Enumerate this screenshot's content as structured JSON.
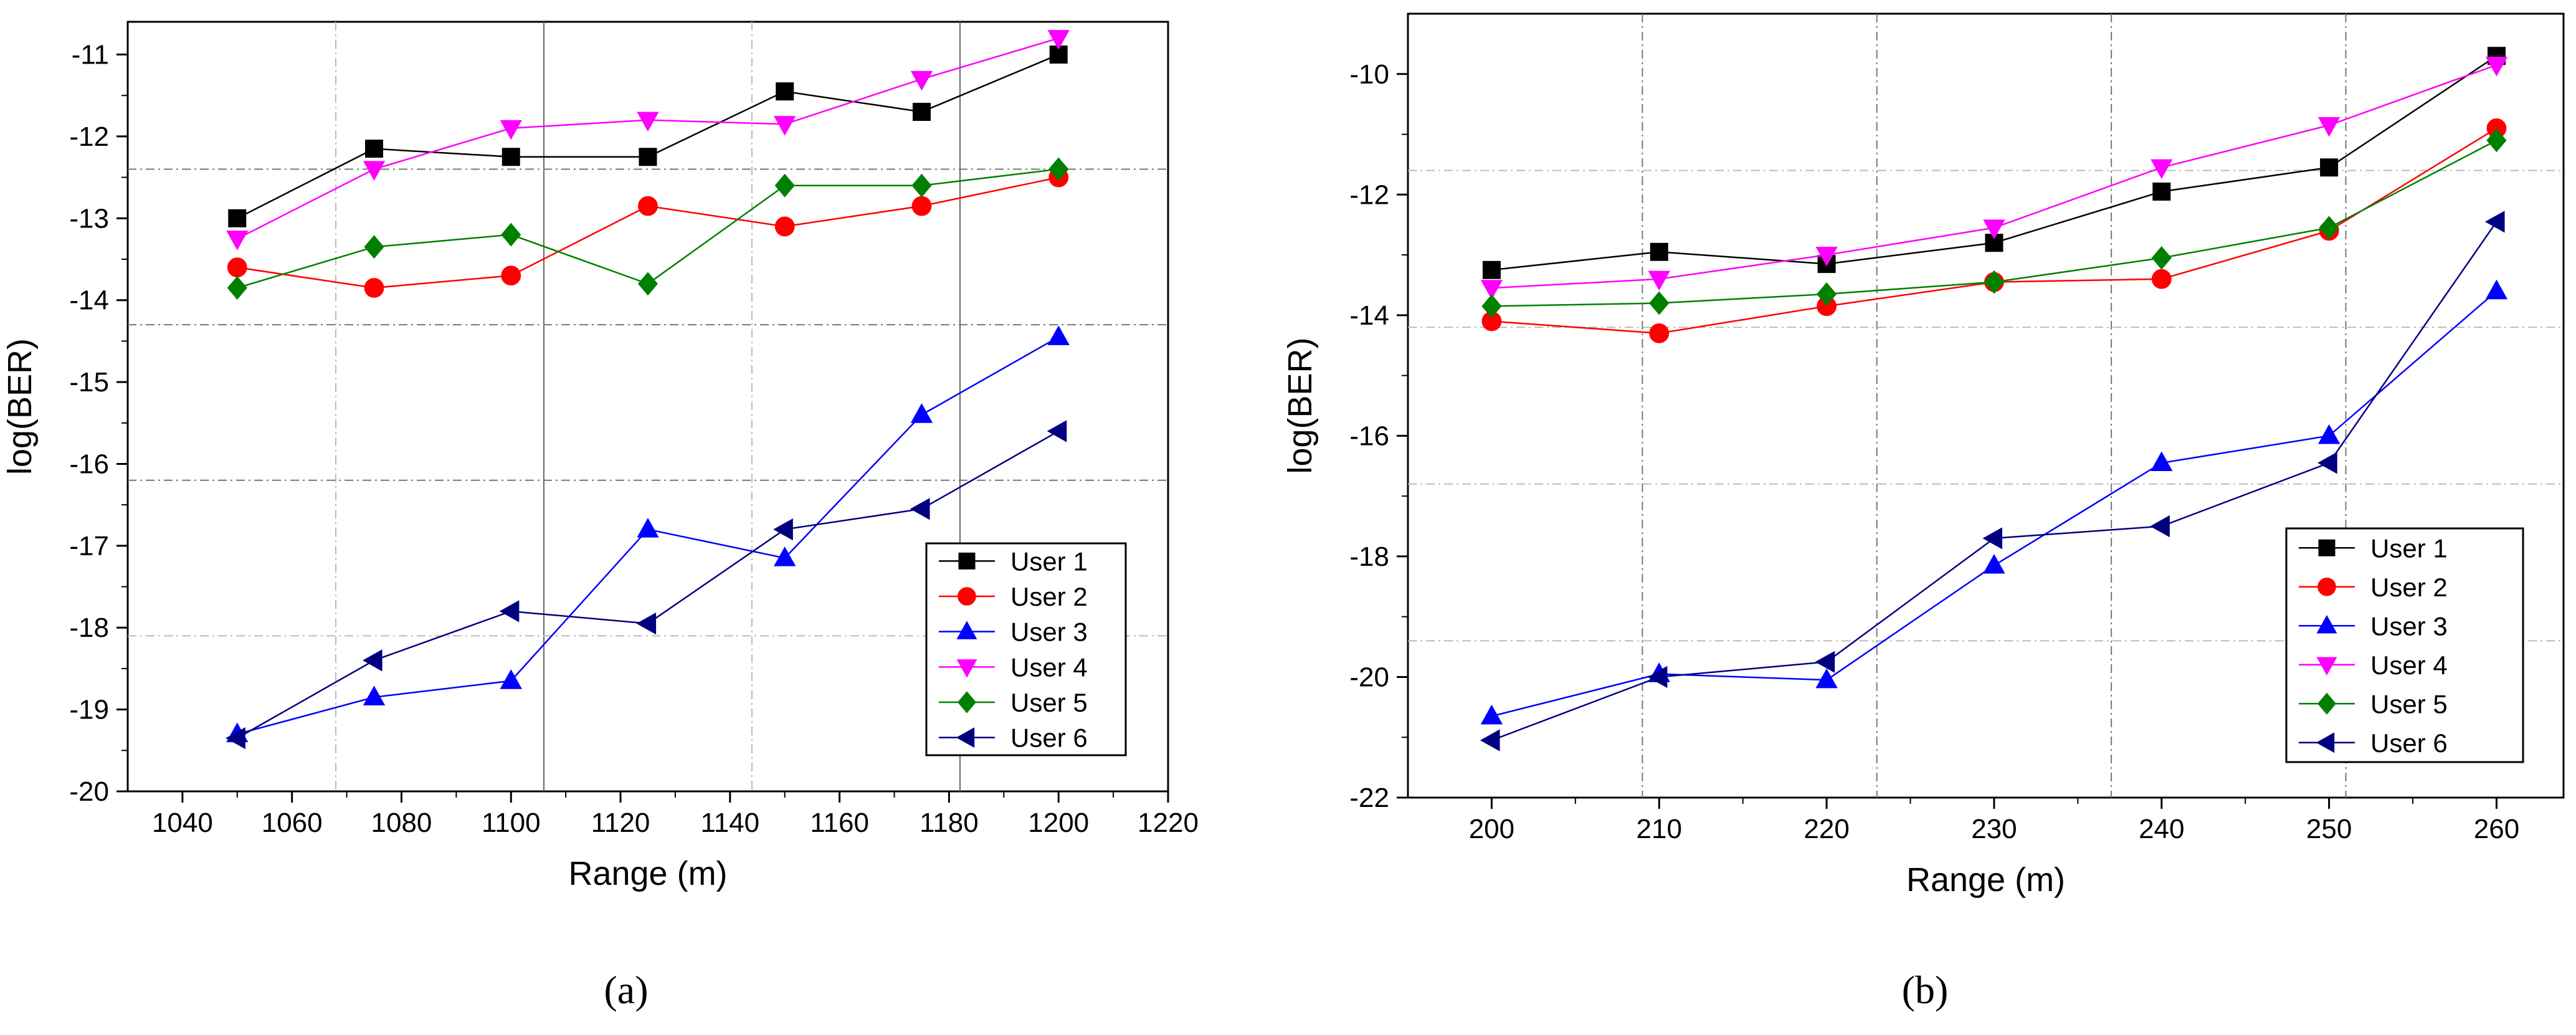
{
  "figure": {
    "captions": {
      "a": "(a)",
      "b": "(b)"
    }
  },
  "chart_data": [
    {
      "id": "a",
      "type": "line",
      "title": "",
      "xlabel": "Range (m)",
      "ylabel": "log(BER)",
      "xlim": [
        1030,
        1220
      ],
      "ylim": [
        -20,
        -10.6
      ],
      "xticks": [
        1040,
        1060,
        1080,
        1100,
        1120,
        1140,
        1160,
        1180,
        1200,
        1220
      ],
      "yticks": [
        -20,
        -19,
        -18,
        -17,
        -16,
        -15,
        -14,
        -13,
        -12,
        -11
      ],
      "legend_position": "bottom-right",
      "x": [
        1050,
        1075,
        1100,
        1125,
        1150,
        1175,
        1200
      ],
      "series": [
        {
          "name": "User 1",
          "color": "#000000",
          "marker": "square",
          "values": [
            -13.0,
            -12.15,
            -12.25,
            -12.25,
            -11.45,
            -11.7,
            -11.0
          ]
        },
        {
          "name": "User 2",
          "color": "#ff0000",
          "marker": "circle",
          "values": [
            -13.6,
            -13.85,
            -13.7,
            -12.85,
            -13.1,
            -12.85,
            -12.5
          ]
        },
        {
          "name": "User 3",
          "color": "#0000ff",
          "marker": "triangle-up",
          "values": [
            -19.3,
            -18.85,
            -18.65,
            -16.8,
            -17.15,
            -15.4,
            -14.45
          ]
        },
        {
          "name": "User 4",
          "color": "#ff00ff",
          "marker": "triangle-down",
          "values": [
            -13.25,
            -12.4,
            -11.9,
            -11.8,
            -11.85,
            -11.3,
            -10.8
          ]
        },
        {
          "name": "User 5",
          "color": "#008000",
          "marker": "diamond",
          "values": [
            -13.85,
            -13.35,
            -13.2,
            -13.8,
            -12.6,
            -12.6,
            -12.4
          ]
        },
        {
          "name": "User 6",
          "color": "#000080",
          "marker": "triangle-left",
          "values": [
            -19.35,
            -18.4,
            -17.8,
            -17.95,
            -16.8,
            -16.55,
            -15.6
          ]
        }
      ]
    },
    {
      "id": "b",
      "type": "line",
      "title": "",
      "xlabel": "Range (m)",
      "ylabel": "log(BER)",
      "xlim": [
        195,
        264
      ],
      "ylim": [
        -22,
        -9
      ],
      "xticks": [
        200,
        210,
        220,
        230,
        240,
        250,
        260
      ],
      "yticks": [
        -22,
        -20,
        -18,
        -16,
        -14,
        -12,
        -10
      ],
      "legend_position": "bottom-right",
      "x": [
        200,
        210,
        220,
        230,
        240,
        250,
        260
      ],
      "series": [
        {
          "name": "User 1",
          "color": "#000000",
          "marker": "square",
          "values": [
            -13.25,
            -12.95,
            -13.15,
            -12.8,
            -11.95,
            -11.55,
            -9.7
          ]
        },
        {
          "name": "User 2",
          "color": "#ff0000",
          "marker": "circle",
          "values": [
            -14.1,
            -14.3,
            -13.85,
            -13.45,
            -13.4,
            -12.6,
            -10.9
          ]
        },
        {
          "name": "User 3",
          "color": "#0000ff",
          "marker": "triangle-up",
          "values": [
            -20.65,
            -19.95,
            -20.05,
            -18.15,
            -16.45,
            -16.0,
            -13.6
          ]
        },
        {
          "name": "User 4",
          "color": "#ff00ff",
          "marker": "triangle-down",
          "values": [
            -13.55,
            -13.4,
            -13.0,
            -12.55,
            -11.55,
            -10.85,
            -9.85
          ]
        },
        {
          "name": "User 5",
          "color": "#008000",
          "marker": "diamond",
          "values": [
            -13.85,
            -13.8,
            -13.65,
            -13.45,
            -13.05,
            -12.55,
            -11.1
          ]
        },
        {
          "name": "User 6",
          "color": "#000080",
          "marker": "triangle-left",
          "values": [
            -21.05,
            -20.0,
            -19.75,
            -17.7,
            -17.5,
            -16.45,
            -12.45
          ]
        }
      ]
    }
  ]
}
